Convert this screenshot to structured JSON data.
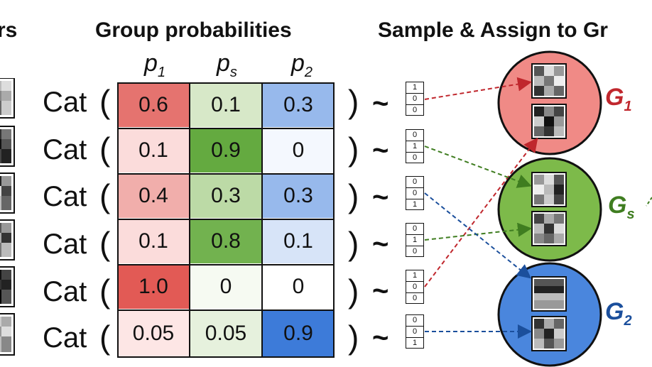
{
  "headings": {
    "left_fragment": "rs",
    "group_probabilities": "Group probabilities",
    "sample_assign": "Sample & Assign to Gr"
  },
  "columns": [
    {
      "symbol": "p",
      "sub": "1"
    },
    {
      "symbol": "p",
      "sub": "s"
    },
    {
      "symbol": "p",
      "sub": "2"
    }
  ],
  "cat_label": "Cat",
  "paren_open": "(",
  "paren_close": ")",
  "tilde": "~",
  "rows": [
    {
      "values": [
        "0.6",
        "0.1",
        "0.3"
      ],
      "onehot": [
        "1",
        "0",
        "0"
      ]
    },
    {
      "values": [
        "0.1",
        "0.9",
        "0"
      ],
      "onehot": [
        "0",
        "1",
        "0"
      ]
    },
    {
      "values": [
        "0.4",
        "0.3",
        "0.3"
      ],
      "onehot": [
        "0",
        "0",
        "1"
      ]
    },
    {
      "values": [
        "0.1",
        "0.8",
        "0.1"
      ],
      "onehot": [
        "0",
        "1",
        "0"
      ]
    },
    {
      "values": [
        "1.0",
        "0",
        "0"
      ],
      "onehot": [
        "1",
        "0",
        "0"
      ]
    },
    {
      "values": [
        "0.05",
        "0.05",
        "0.9"
      ],
      "onehot": [
        "0",
        "0",
        "1"
      ]
    }
  ],
  "groups": [
    {
      "symbol": "G",
      "sub": "1",
      "color": "#c0272d",
      "fill": "#f08a86"
    },
    {
      "symbol": "G",
      "sub": "s",
      "color": "#3f7d20",
      "fill": "#7dba4a"
    },
    {
      "symbol": "G",
      "sub": "2",
      "color": "#1b4f9c",
      "fill": "#4a86dd"
    }
  ],
  "colors": {
    "red": "#e55b57",
    "green": "#5fa53c",
    "blue": "#3d7bd9"
  }
}
